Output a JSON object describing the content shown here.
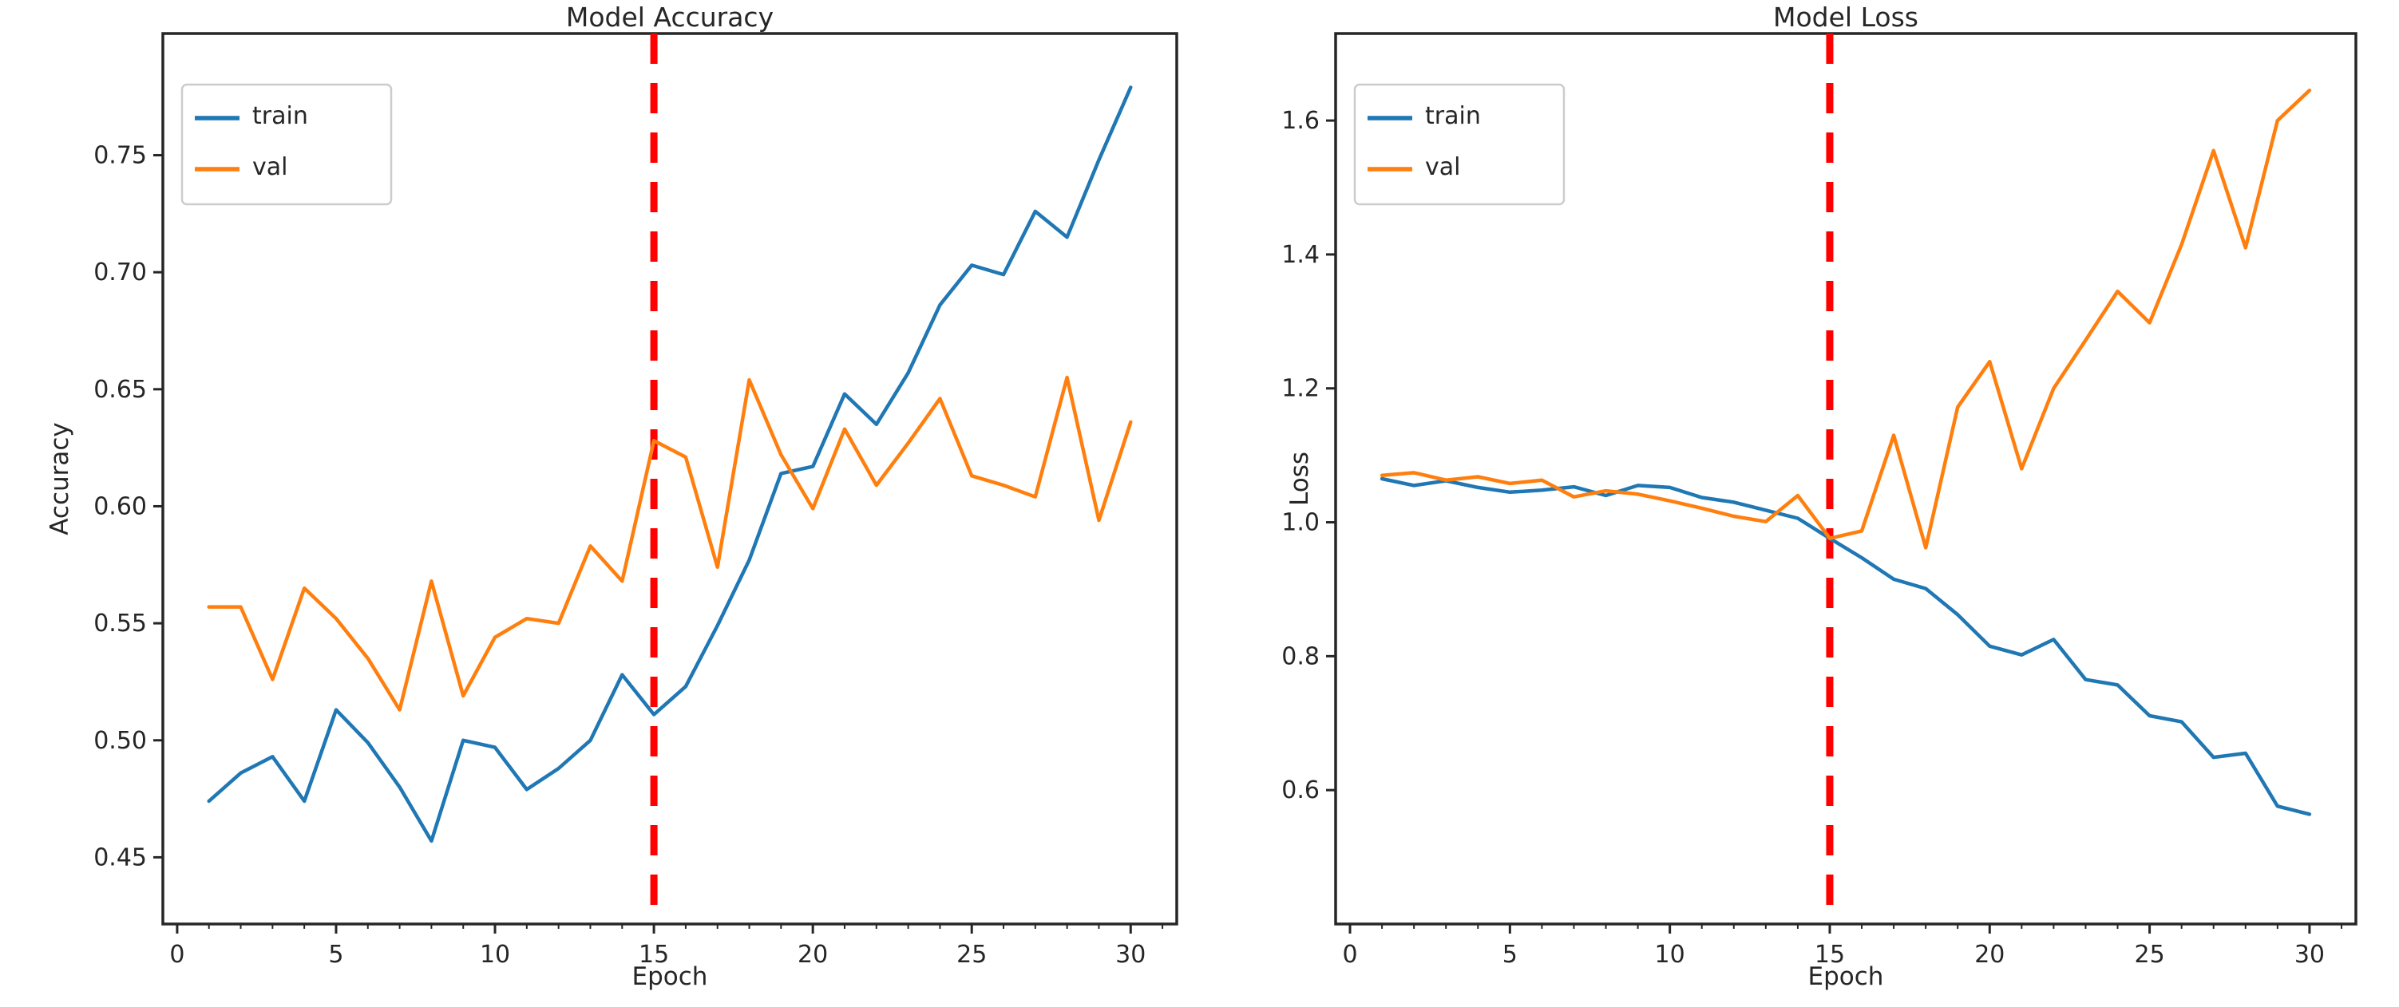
{
  "figure": {
    "background": "#ffffff"
  },
  "colors": {
    "train": "#1f77b4",
    "val": "#ff7f0e",
    "early_stop_line": "#ff0000",
    "spine": "#262626",
    "text": "#262626",
    "legend_edge": "#cccccc",
    "legend_bg": "#ffffff"
  },
  "chart_data": [
    {
      "type": "line",
      "title": "Model Accuracy",
      "xlabel": "Epoch",
      "ylabel": "Accuracy",
      "legend_position": "upper left",
      "grid": false,
      "xlim": [
        -0.45,
        31.45
      ],
      "ylim": [
        0.4215,
        0.802
      ],
      "xticks": [
        0,
        5,
        10,
        15,
        20,
        25,
        30
      ],
      "yticks": [
        0.45,
        0.5,
        0.55,
        0.6,
        0.65,
        0.7,
        0.75
      ],
      "ytick_decimals": 2,
      "vline_x": 15,
      "x": [
        1,
        2,
        3,
        4,
        5,
        6,
        7,
        8,
        9,
        10,
        11,
        12,
        13,
        14,
        15,
        16,
        17,
        18,
        19,
        20,
        21,
        22,
        23,
        24,
        25,
        26,
        27,
        28,
        29,
        30
      ],
      "series": [
        {
          "name": "train",
          "color_key": "train",
          "values": [
            0.474,
            0.486,
            0.493,
            0.474,
            0.513,
            0.499,
            0.48,
            0.457,
            0.5,
            0.497,
            0.479,
            0.488,
            0.5,
            0.528,
            0.511,
            0.523,
            0.549,
            0.577,
            0.614,
            0.617,
            0.648,
            0.635,
            0.657,
            0.686,
            0.703,
            0.699,
            0.726,
            0.715,
            0.748,
            0.779
          ]
        },
        {
          "name": "val",
          "color_key": "val",
          "values": [
            0.557,
            0.557,
            0.526,
            0.565,
            0.552,
            0.535,
            0.513,
            0.568,
            0.519,
            0.544,
            0.552,
            0.55,
            0.583,
            0.568,
            0.628,
            0.621,
            0.574,
            0.654,
            0.622,
            0.599,
            0.633,
            0.609,
            0.627,
            0.646,
            0.613,
            0.609,
            0.604,
            0.655,
            0.594,
            0.636
          ]
        }
      ]
    },
    {
      "type": "line",
      "title": "Model Loss",
      "xlabel": "Epoch",
      "ylabel": "Loss",
      "legend_position": "upper left",
      "grid": false,
      "xlim": [
        -0.45,
        31.45
      ],
      "ylim": [
        0.4,
        1.73
      ],
      "xticks": [
        0,
        5,
        10,
        15,
        20,
        25,
        30
      ],
      "yticks": [
        0.6,
        0.8,
        1.0,
        1.2,
        1.4,
        1.6
      ],
      "ytick_decimals": 1,
      "vline_x": 15,
      "x": [
        1,
        2,
        3,
        4,
        5,
        6,
        7,
        8,
        9,
        10,
        11,
        12,
        13,
        14,
        15,
        16,
        17,
        18,
        19,
        20,
        21,
        22,
        23,
        24,
        25,
        26,
        27,
        28,
        29,
        30
      ],
      "series": [
        {
          "name": "train",
          "color_key": "train",
          "values": [
            1.065,
            1.055,
            1.062,
            1.052,
            1.045,
            1.048,
            1.053,
            1.04,
            1.055,
            1.052,
            1.037,
            1.03,
            1.018,
            1.006,
            0.976,
            0.947,
            0.915,
            0.901,
            0.862,
            0.815,
            0.802,
            0.825,
            0.765,
            0.757,
            0.711,
            0.702,
            0.649,
            0.655,
            0.576,
            0.564
          ]
        },
        {
          "name": "val",
          "color_key": "val",
          "values": [
            1.07,
            1.074,
            1.063,
            1.068,
            1.058,
            1.063,
            1.038,
            1.047,
            1.042,
            1.032,
            1.021,
            1.009,
            1.001,
            1.04,
            0.976,
            0.987,
            1.13,
            0.962,
            1.172,
            1.24,
            1.08,
            1.2,
            1.272,
            1.345,
            1.298,
            1.415,
            1.555,
            1.41,
            1.6,
            1.645
          ]
        }
      ]
    }
  ]
}
